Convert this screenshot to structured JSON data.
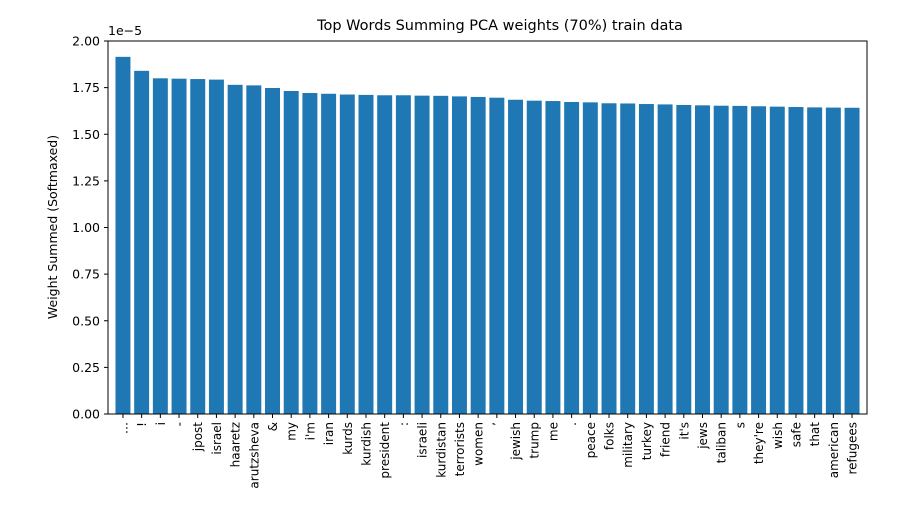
{
  "chart_data": {
    "type": "bar",
    "title": "Top Words Summing PCA weights (70%) train data",
    "xlabel": "",
    "ylabel": "Weight Summed (Softmaxed)",
    "y_offset_label": "1e−5",
    "ylim": [
      0,
      2.0
    ],
    "yticks": [
      0.0,
      0.25,
      0.5,
      0.75,
      1.0,
      1.25,
      1.5,
      1.75,
      2.0
    ],
    "ytick_labels": [
      "0.00",
      "0.25",
      "0.50",
      "0.75",
      "1.00",
      "1.25",
      "1.50",
      "1.75",
      "2.00"
    ],
    "bar_color": "#1f77b4",
    "grid": false,
    "categories": [
      "…",
      "!",
      "i",
      "-",
      "jpost",
      "israel",
      "haaretz",
      "arutzsheva",
      "&",
      "my",
      "i'm",
      "iran",
      "kurds",
      "kurdish",
      "president",
      ":",
      "israeli",
      "kurdistan",
      "terrorists",
      "women",
      "’",
      "jewish",
      "trump",
      "me",
      ".",
      "peace",
      "folks",
      "military",
      "turkey",
      "friend",
      "it's",
      "jews",
      "taliban",
      "s",
      "they're",
      "wish",
      "safe",
      "that",
      "american",
      "refugees"
    ],
    "values": [
      1.915,
      1.84,
      1.8,
      1.798,
      1.796,
      1.793,
      1.765,
      1.762,
      1.748,
      1.732,
      1.721,
      1.717,
      1.713,
      1.711,
      1.709,
      1.709,
      1.707,
      1.706,
      1.703,
      1.7,
      1.696,
      1.685,
      1.68,
      1.678,
      1.673,
      1.671,
      1.666,
      1.665,
      1.662,
      1.66,
      1.657,
      1.655,
      1.653,
      1.652,
      1.65,
      1.648,
      1.646,
      1.644,
      1.643,
      1.642
    ]
  }
}
